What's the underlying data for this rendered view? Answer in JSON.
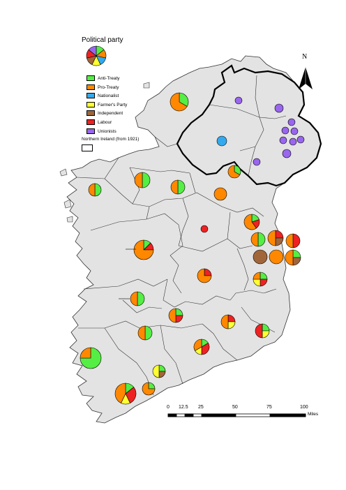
{
  "legend": {
    "title": "Political party",
    "items": [
      {
        "label": "Anti-Treaty",
        "color": "#55ee44"
      },
      {
        "label": "Pro-Treaty",
        "color": "#ff8800"
      },
      {
        "label": "Nationalist",
        "color": "#33aaee"
      },
      {
        "label": "Farmer's Party",
        "color": "#ffff33"
      },
      {
        "label": "Independent",
        "color": "#a0663a"
      },
      {
        "label": "Labour",
        "color": "#ee2222"
      },
      {
        "label": "Unionists",
        "color": "#9966ee"
      }
    ],
    "ni_label": "Northern Ireland (from 1921)"
  },
  "north_arrow": {
    "label": "N"
  },
  "scale": {
    "ticks": [
      "0",
      "12.5",
      "25",
      "50",
      "75",
      "100"
    ],
    "unit": "Miles"
  },
  "colors": {
    "land": "#e3e3e3",
    "sea": "#ffffff",
    "border": "#333333",
    "ni_border": "#000000"
  }
}
